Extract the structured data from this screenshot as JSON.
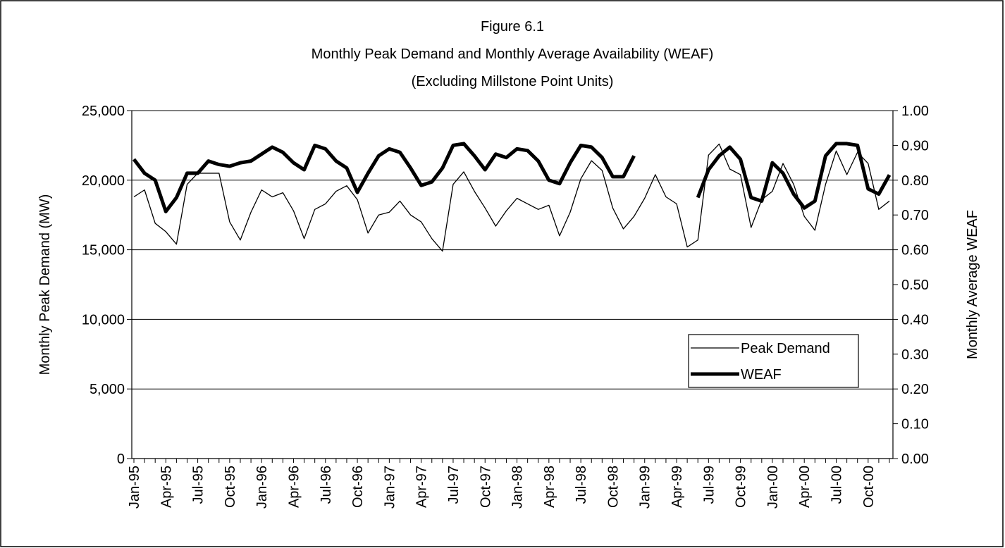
{
  "chart_data": {
    "type": "line",
    "title": "Figure 6.1",
    "subtitle": [
      "Monthly Peak Demand and Monthly Average Availability (WEAF)",
      "(Excluding Millstone Point Units)"
    ],
    "y_label": "Monthly Peak Demand (MW)",
    "y2_label": "Monthly Average WEAF",
    "categories": [
      "Jan-95",
      null,
      null,
      "Apr-95",
      null,
      null,
      "Jul-95",
      null,
      null,
      "Oct-95",
      null,
      null,
      "Jan-96",
      null,
      null,
      "Apr-96",
      null,
      null,
      "Jul-96",
      null,
      null,
      "Oct-96",
      null,
      null,
      "Jan-97",
      null,
      null,
      "Apr-97",
      null,
      null,
      "Jul-97",
      null,
      null,
      "Oct-97",
      null,
      null,
      "Jan-98",
      null,
      null,
      "Apr-98",
      null,
      null,
      "Jul-98",
      null,
      null,
      "Oct-98",
      null,
      null,
      "Jan-99",
      null,
      null,
      "Apr-99",
      null,
      null,
      "Jul-99",
      null,
      null,
      "Oct-99",
      null,
      null,
      "Jan-00",
      null,
      null,
      "Apr-00",
      null,
      null,
      "Jul-00",
      null,
      null,
      "Oct-00",
      null,
      null
    ],
    "series": [
      {
        "name": "Peak Demand",
        "color": "#000000",
        "width": 1.3,
        "values": [
          18800,
          19300,
          16900,
          16300,
          15400,
          19700,
          20500,
          20500,
          20500,
          17000,
          15700,
          17700,
          19300,
          18800,
          19100,
          17800,
          15800,
          17900,
          18300,
          19200,
          19600,
          18600,
          16200,
          17500,
          17700,
          18500,
          17500,
          17000,
          15800,
          14900,
          19700,
          20600,
          19200,
          18000,
          16700,
          17800,
          18700,
          18300,
          17900,
          18200,
          16000,
          17700,
          20100,
          21400,
          20700,
          18000,
          16500,
          17400,
          18700,
          20400,
          18800,
          18300,
          15200,
          15700,
          21800,
          22600,
          20800,
          20400,
          16600,
          18600,
          19200,
          21200,
          19700,
          17400,
          16400,
          19700,
          22100,
          20400,
          22000,
          21200,
          17900,
          18500
        ]
      },
      {
        "name": "WEAF",
        "color": "#000000",
        "width": 5,
        "axis": "y2",
        "values": [
          0.86,
          0.82,
          0.8,
          0.71,
          0.75,
          0.82,
          0.82,
          0.855,
          0.845,
          0.84,
          0.85,
          0.855,
          0.875,
          0.895,
          0.88,
          0.85,
          0.83,
          0.9,
          0.89,
          0.855,
          0.835,
          0.765,
          0.82,
          0.87,
          0.89,
          0.88,
          0.835,
          0.785,
          0.795,
          0.835,
          0.9,
          0.905,
          0.87,
          0.83,
          0.875,
          0.865,
          0.89,
          0.885,
          0.855,
          0.8,
          0.79,
          0.85,
          0.9,
          0.895,
          0.865,
          0.81,
          0.81,
          0.87,
          null,
          null,
          null,
          null,
          null,
          0.75,
          0.83,
          0.87,
          0.895,
          0.86,
          0.75,
          0.74,
          0.85,
          0.82,
          0.76,
          0.72,
          0.74,
          0.87,
          0.905,
          0.905,
          0.9,
          0.775,
          0.76,
          0.815
        ]
      }
    ],
    "ylim": [
      0,
      25000
    ],
    "yticks": [
      0,
      {
        "value": 5000,
        "label": "5,000"
      },
      {
        "value": 10000,
        "label": "10,000"
      },
      {
        "value": 15000,
        "label": "15,000"
      },
      {
        "value": 20000,
        "label": "20,000"
      },
      {
        "value": 25000,
        "label": "25,000"
      }
    ],
    "y2lim": [
      0,
      1
    ],
    "y2ticks": [
      {
        "value": 0,
        "label": "0.00"
      },
      {
        "value": 0.1,
        "label": "0.10"
      },
      {
        "value": 0.2,
        "label": "0.20"
      },
      {
        "value": 0.3,
        "label": "0.30"
      },
      {
        "value": 0.4,
        "label": "0.40"
      },
      {
        "value": 0.5,
        "label": "0.50"
      },
      {
        "value": 0.6,
        "label": "0.60"
      },
      {
        "value": 0.7,
        "label": "0.70"
      },
      {
        "value": 0.8,
        "label": "0.80"
      },
      {
        "value": 0.9,
        "label": "0.90"
      },
      {
        "value": 1,
        "label": "1.00"
      }
    ],
    "grid": true,
    "legend": "lower-right"
  }
}
